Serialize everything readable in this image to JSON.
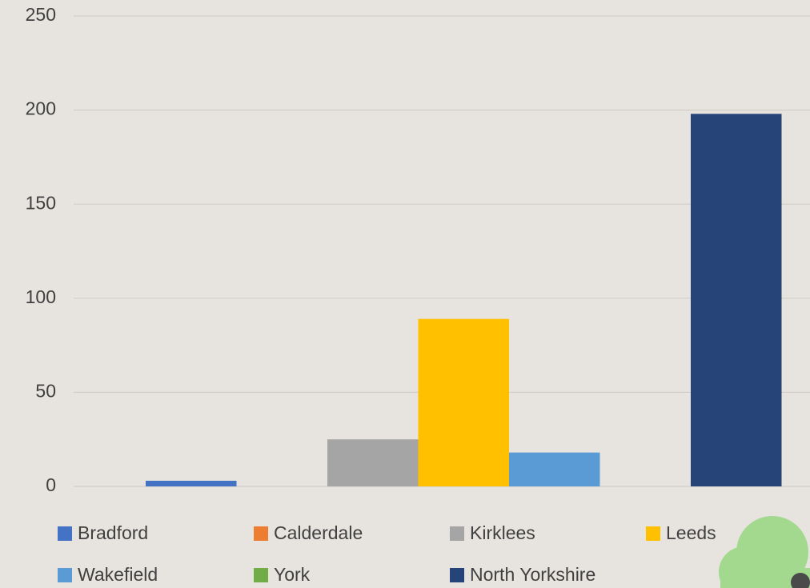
{
  "chart_data": {
    "type": "bar",
    "categories": [
      null
    ],
    "series": [
      {
        "name": "Bradford",
        "color": "#4472c4",
        "values": [
          3
        ]
      },
      {
        "name": "Calderdale",
        "color": "#ed7d31",
        "values": [
          0
        ]
      },
      {
        "name": "Kirklees",
        "color": "#a5a5a5",
        "values": [
          25
        ]
      },
      {
        "name": "Leeds",
        "color": "#ffc000",
        "values": [
          89
        ]
      },
      {
        "name": "Wakefield",
        "color": "#5b9bd5",
        "values": [
          18
        ]
      },
      {
        "name": "York",
        "color": "#70ad47",
        "values": [
          0
        ]
      },
      {
        "name": "North Yorkshire",
        "color": "#264478",
        "values": [
          198
        ]
      }
    ],
    "ylim": [
      0,
      250
    ],
    "yticks": [
      0,
      50,
      100,
      150,
      200,
      250
    ],
    "grid": true,
    "legend": "bottom"
  }
}
